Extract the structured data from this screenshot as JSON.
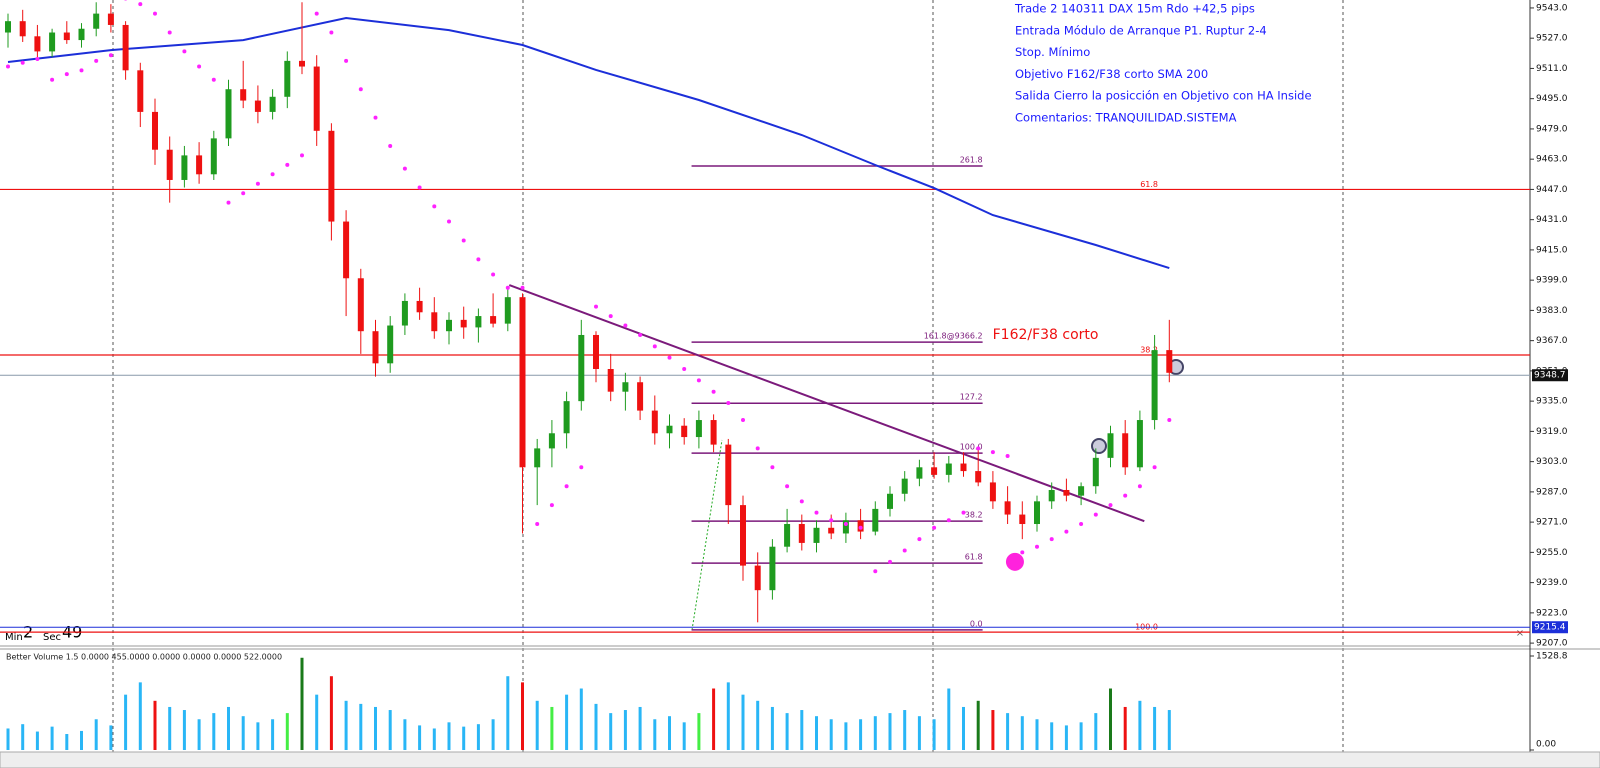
{
  "chart_data": [
    {
      "type": "candlestick",
      "ylim": [
        9206,
        9547.2
      ],
      "yticks": [
        {
          "value": 9543,
          "label": "9543.0"
        },
        {
          "value": 9527,
          "label": "9527.0"
        },
        {
          "value": 9511,
          "label": "9511.0"
        },
        {
          "value": 9495,
          "label": "9495.0"
        },
        {
          "value": 9479,
          "label": "9479.0"
        },
        {
          "value": 9463,
          "label": "9463.0"
        },
        {
          "value": 9447,
          "label": "9447.0"
        },
        {
          "value": 9431,
          "label": "9431.0"
        },
        {
          "value": 9415,
          "label": "9415.0"
        },
        {
          "value": 9399,
          "label": "9399.0"
        },
        {
          "value": 9383,
          "label": "9383.0"
        },
        {
          "value": 9367,
          "label": "9367.0"
        },
        {
          "value": 9351,
          "label": "9351.0"
        },
        {
          "value": 9335,
          "label": "9335.0"
        },
        {
          "value": 9319,
          "label": "9319.0"
        },
        {
          "value": 9303,
          "label": "9303.0"
        },
        {
          "value": 9287,
          "label": "9287.0"
        },
        {
          "value": 9271,
          "label": "9271.0"
        },
        {
          "value": 9255,
          "label": "9255.0"
        },
        {
          "value": 9239,
          "label": "9239.0"
        },
        {
          "value": 9223,
          "label": "9223.0"
        },
        {
          "value": 9207,
          "label": "9207.0"
        }
      ],
      "up_color": "#1f9b1f",
      "down_color": "#ee1111",
      "open": [
        9530,
        9536,
        9528,
        9520,
        9530,
        9526,
        9532,
        9540,
        9534,
        9510,
        9488,
        9468,
        9452,
        9465,
        9455,
        9474,
        9500,
        9494,
        9488,
        9496,
        9515,
        9512,
        9478,
        9430,
        9400,
        9372,
        9355,
        9375,
        9388,
        9382,
        9372,
        9378,
        9374,
        9380,
        9376,
        9390,
        9300,
        9310,
        9318,
        9335,
        9370,
        9352,
        9340,
        9345,
        9330,
        9318,
        9322,
        9316,
        9325,
        9312,
        9280,
        9248,
        9235,
        9258,
        9270,
        9260,
        9268,
        9265,
        9272,
        9266,
        9278,
        9286,
        9294,
        9300,
        9296,
        9302,
        9298,
        9292,
        9282,
        9275,
        9270,
        9282,
        9288,
        9285,
        9290,
        9305,
        9318,
        9300,
        9325,
        9362
      ],
      "high": [
        9540,
        9542,
        9534,
        9532,
        9536,
        9535,
        9546,
        9545,
        9536,
        9514,
        9495,
        9475,
        9470,
        9472,
        9478,
        9505,
        9515,
        9502,
        9500,
        9520,
        9546,
        9518,
        9482,
        9436,
        9405,
        9378,
        9380,
        9392,
        9395,
        9390,
        9382,
        9385,
        9384,
        9392,
        9395,
        9392,
        9315,
        9325,
        9340,
        9378,
        9372,
        9360,
        9350,
        9348,
        9338,
        9328,
        9326,
        9330,
        9328,
        9315,
        9285,
        9255,
        9262,
        9278,
        9275,
        9272,
        9275,
        9276,
        9278,
        9282,
        9290,
        9298,
        9304,
        9308,
        9306,
        9308,
        9310,
        9298,
        9290,
        9282,
        9285,
        9292,
        9294,
        9292,
        9310,
        9322,
        9325,
        9330,
        9370,
        9378
      ],
      "low": [
        9522,
        9525,
        9515,
        9517,
        9524,
        9522,
        9528,
        9530,
        9505,
        9480,
        9460,
        9440,
        9448,
        9450,
        9452,
        9470,
        9490,
        9482,
        9484,
        9490,
        9508,
        9470,
        9420,
        9380,
        9360,
        9348,
        9350,
        9370,
        9378,
        9368,
        9365,
        9368,
        9366,
        9374,
        9372,
        9265,
        9280,
        9300,
        9310,
        9330,
        9345,
        9335,
        9330,
        9325,
        9312,
        9310,
        9312,
        9310,
        9308,
        9270,
        9240,
        9218,
        9230,
        9255,
        9256,
        9255,
        9262,
        9260,
        9262,
        9264,
        9274,
        9282,
        9290,
        9294,
        9292,
        9295,
        9290,
        9278,
        9270,
        9262,
        9266,
        9278,
        9282,
        9280,
        9286,
        9300,
        9296,
        9298,
        9320,
        9345
      ],
      "close": [
        9536,
        9528,
        9520,
        9530,
        9526,
        9532,
        9540,
        9534,
        9510,
        9488,
        9468,
        9452,
        9465,
        9455,
        9474,
        9500,
        9494,
        9488,
        9496,
        9515,
        9512,
        9478,
        9430,
        9400,
        9372,
        9355,
        9375,
        9388,
        9382,
        9372,
        9378,
        9374,
        9380,
        9376,
        9390,
        9300,
        9310,
        9318,
        9335,
        9370,
        9352,
        9340,
        9345,
        9330,
        9318,
        9322,
        9316,
        9325,
        9312,
        9280,
        9248,
        9235,
        9258,
        9270,
        9260,
        9268,
        9265,
        9272,
        9266,
        9278,
        9286,
        9294,
        9300,
        9296,
        9302,
        9298,
        9292,
        9282,
        9275,
        9270,
        9282,
        9288,
        9285,
        9290,
        9305,
        9318,
        9300,
        9325,
        9362,
        9350
      ],
      "sar": {
        "color": "#ff22ff",
        "values": [
          9512,
          9514,
          9516,
          9505,
          9508,
          9510,
          9515,
          9518,
          9548,
          9545,
          9540,
          9530,
          9520,
          9512,
          9505,
          9440,
          9445,
          9450,
          9455,
          9460,
          9465,
          9540,
          9530,
          9515,
          9500,
          9485,
          9470,
          9458,
          9448,
          9438,
          9430,
          9420,
          9410,
          9402,
          9395,
          9395,
          9270,
          9280,
          9290,
          9300,
          9385,
          9380,
          9375,
          9370,
          9364,
          9358,
          9352,
          9346,
          9340,
          9334,
          9325,
          9310,
          9300,
          9290,
          9282,
          9276,
          9272,
          9270,
          9268,
          9245,
          9250,
          9256,
          9262,
          9268,
          9272,
          9276,
          9310,
          9308,
          9306,
          9255,
          9258,
          9262,
          9266,
          9270,
          9275,
          9280,
          9285,
          9290,
          9300,
          9325
        ]
      },
      "sma": {
        "color": "#1c2fd9",
        "x": [
          0,
          7,
          16,
          23,
          30,
          35,
          40,
          47,
          54,
          59,
          63,
          67,
          74,
          79
        ],
        "values": [
          9514.4,
          9520.7,
          9526,
          9537.7,
          9531.3,
          9523.4,
          9510.2,
          9494.3,
          9475.8,
          9459.9,
          9447.7,
          9433.4,
          9417.6,
          9405.4
        ]
      },
      "trendline": {
        "color": "#7b1a7b",
        "x": [
          34.1,
          77.3
        ],
        "values": [
          9396.4,
          9271.5
        ]
      },
      "hlines": [
        {
          "value": 9447,
          "label": "61.8",
          "color": "#ee1111"
        },
        {
          "value": 9359.4,
          "label": "38.2",
          "color": "#ee1111"
        },
        {
          "value": 9212.8,
          "label": "100.0",
          "color": "#ee1111"
        }
      ],
      "price_markers": [
        {
          "value": 9348.7,
          "color": "#111111",
          "line": "#8899aa"
        },
        {
          "value": 9215.4,
          "color": "#1c2fd9",
          "line": "#1c2fd9"
        }
      ],
      "fib": {
        "color": "#7b1a7b",
        "x": [
          46.5,
          66.3
        ],
        "levels": [
          {
            "label": "261.8",
            "value": 9459.4
          },
          {
            "label": "161.8@9366.2",
            "value": 9366.2
          },
          {
            "label": "127.2",
            "value": 9333.9
          },
          {
            "label": "100.0",
            "value": 9307.5
          },
          {
            "label": "38.2",
            "value": 9271.5
          },
          {
            "label": "61.8",
            "value": 9249.3
          },
          {
            "label": "0.0",
            "value": 9214
          }
        ]
      },
      "annotation": {
        "text": "F162/F38 corto",
        "color": "#ee1111"
      },
      "signal": {
        "x": 68.5,
        "value": 9250,
        "color": "#ff22dd"
      },
      "notes": [
        "Trade 2 140311 DAX 15m Rdo +42,5 pips",
        "Entrada Módulo de Arranque P1. Ruptur 2-4",
        "Stop. Mínimo",
        "Objetivo F162/F38 corto   SMA 200",
        "Salida Cierro la posicción en Objetivo con HA Inside",
        "Comentarios: TRANQUILIDAD.SISTEMA"
      ]
    },
    {
      "type": "bar",
      "title": "Better Volume 1.5 0.0000 455.0000 0.0000 0.0000 0.0000 522.0000",
      "ylim": [
        0,
        1528.8
      ],
      "yticks": [
        1528.8,
        {
          "value": 0,
          "label": "0.00"
        }
      ],
      "values": [
        350,
        420,
        300,
        380,
        260,
        310,
        500,
        400,
        900,
        1100,
        800,
        700,
        650,
        500,
        600,
        700,
        550,
        450,
        500,
        600,
        1500,
        900,
        1200,
        800,
        750,
        700,
        650,
        500,
        400,
        350,
        450,
        380,
        420,
        500,
        1200,
        1100,
        800,
        700,
        900,
        1000,
        750,
        600,
        650,
        700,
        500,
        550,
        450,
        600,
        1000,
        1100,
        900,
        800,
        700,
        600,
        650,
        550,
        500,
        450,
        500,
        550,
        600,
        650,
        550,
        500,
        1000,
        700,
        800,
        650,
        600,
        550,
        500,
        450,
        400,
        450,
        600,
        1000,
        700,
        800,
        700,
        650
      ],
      "colors": [
        "#29b6f6",
        "#29b6f6",
        "#29b6f6",
        "#29b6f6",
        "#29b6f6",
        "#29b6f6",
        "#29b6f6",
        "#29b6f6",
        "#29b6f6",
        "#29b6f6",
        "#ee1111",
        "#29b6f6",
        "#29b6f6",
        "#29b6f6",
        "#29b6f6",
        "#29b6f6",
        "#29b6f6",
        "#29b6f6",
        "#29b6f6",
        "#44ee44",
        "#1a7a1a",
        "#29b6f6",
        "#ee1111",
        "#29b6f6",
        "#29b6f6",
        "#29b6f6",
        "#29b6f6",
        "#29b6f6",
        "#29b6f6",
        "#29b6f6",
        "#29b6f6",
        "#29b6f6",
        "#29b6f6",
        "#29b6f6",
        "#29b6f6",
        "#ee1111",
        "#29b6f6",
        "#44ee44",
        "#29b6f6",
        "#29b6f6",
        "#29b6f6",
        "#29b6f6",
        "#29b6f6",
        "#29b6f6",
        "#29b6f6",
        "#29b6f6",
        "#29b6f6",
        "#44ee44",
        "#ee1111",
        "#29b6f6",
        "#29b6f6",
        "#29b6f6",
        "#29b6f6",
        "#29b6f6",
        "#29b6f6",
        "#29b6f6",
        "#29b6f6",
        "#29b6f6",
        "#29b6f6",
        "#29b6f6",
        "#29b6f6",
        "#29b6f6",
        "#29b6f6",
        "#29b6f6",
        "#29b6f6",
        "#29b6f6",
        "#1a7a1a",
        "#ee1111",
        "#29b6f6",
        "#29b6f6",
        "#29b6f6",
        "#29b6f6",
        "#29b6f6",
        "#29b6f6",
        "#29b6f6",
        "#1a7a1a",
        "#ee1111",
        "#29b6f6",
        "#29b6f6",
        "#29b6f6"
      ]
    }
  ],
  "timer": {
    "min_label": "Min",
    "min": 2,
    "sec_label": "Sec",
    "sec": 49
  }
}
